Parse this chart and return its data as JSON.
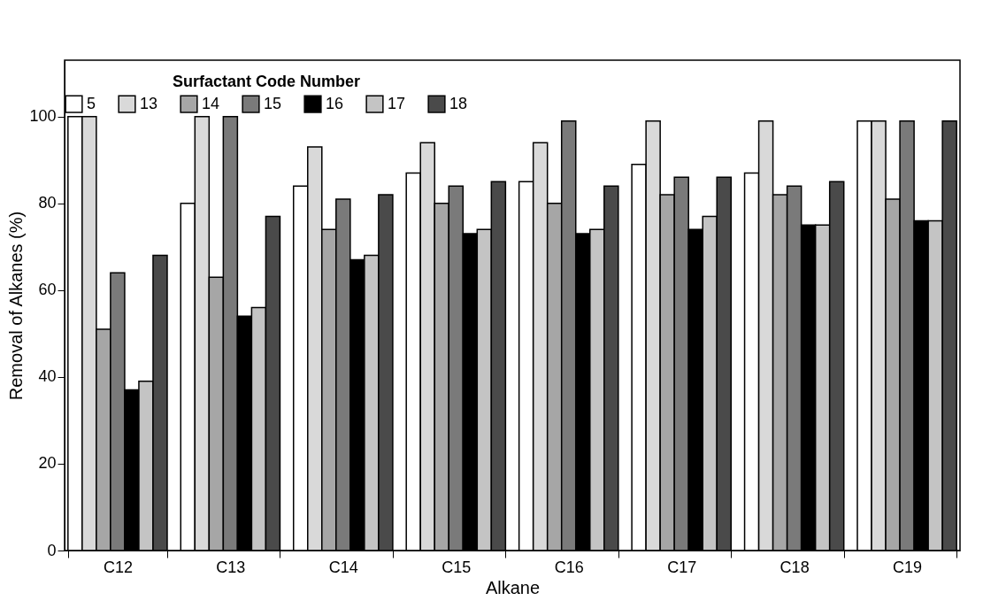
{
  "chart_data": {
    "type": "bar",
    "xlabel": "Alkane",
    "ylabel": "Removal of Alkanes (%)",
    "legend_title": "Surfactant Code Number",
    "categories": [
      "C12",
      "C13",
      "C14",
      "C15",
      "C16",
      "C17",
      "C18",
      "C19"
    ],
    "series": [
      {
        "name": "5",
        "color": "#ffffff",
        "values": [
          100,
          80,
          84,
          87,
          85,
          89,
          87,
          99
        ]
      },
      {
        "name": "13",
        "color": "#d9d9d9",
        "values": [
          100,
          100,
          93,
          94,
          94,
          99,
          99,
          99
        ]
      },
      {
        "name": "14",
        "color": "#a6a6a6",
        "values": [
          51,
          63,
          74,
          80,
          80,
          82,
          82,
          81
        ]
      },
      {
        "name": "15",
        "color": "#7a7a7a",
        "values": [
          64,
          100,
          81,
          84,
          99,
          86,
          84,
          99
        ]
      },
      {
        "name": "16",
        "color": "#000000",
        "values": [
          37,
          54,
          67,
          73,
          73,
          74,
          75,
          76
        ]
      },
      {
        "name": "17",
        "color": "#c4c4c4",
        "values": [
          39,
          56,
          68,
          74,
          74,
          77,
          75,
          76
        ]
      },
      {
        "name": "18",
        "color": "#4a4a4a",
        "values": [
          68,
          77,
          82,
          85,
          84,
          86,
          85,
          99
        ]
      }
    ],
    "ylim": [
      0,
      113
    ],
    "yticks": [
      0,
      20,
      40,
      60,
      80,
      100
    ],
    "grid": false,
    "legend": "top"
  }
}
